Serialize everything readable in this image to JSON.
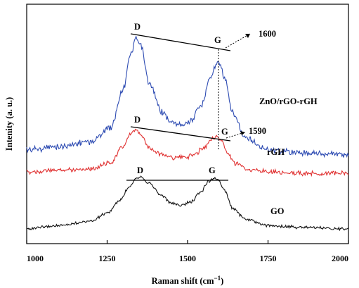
{
  "chart_data": {
    "type": "line",
    "xlabel": "Raman shift (cm",
    "xlabel_sup": "−1",
    "xlabel_close": ")",
    "ylabel": "Intenity (a. u.)",
    "xlim": [
      1000,
      2000
    ],
    "x_ticks": [
      "1000",
      "1250",
      "1500",
      "1750",
      "2000"
    ],
    "y_ticks": "none",
    "legend": "none (series labeled inline at right)",
    "grid": false,
    "series": [
      {
        "name": "ZnO/rGO-rGH",
        "color": "#2d4bb2",
        "points": [
          [
            1000,
            0.1
          ],
          [
            1100,
            0.12
          ],
          [
            1200,
            0.15
          ],
          [
            1260,
            0.24
          ],
          [
            1300,
            0.48
          ],
          [
            1320,
            0.68
          ],
          [
            1340,
            0.8
          ],
          [
            1355,
            0.75
          ],
          [
            1380,
            0.52
          ],
          [
            1420,
            0.34
          ],
          [
            1450,
            0.27
          ],
          [
            1480,
            0.26
          ],
          [
            1510,
            0.28
          ],
          [
            1540,
            0.37
          ],
          [
            1570,
            0.55
          ],
          [
            1590,
            0.64
          ],
          [
            1600,
            0.65
          ],
          [
            1615,
            0.55
          ],
          [
            1640,
            0.33
          ],
          [
            1680,
            0.17
          ],
          [
            1750,
            0.1
          ],
          [
            1850,
            0.08
          ],
          [
            2000,
            0.07
          ]
        ]
      },
      {
        "name": "rGH",
        "color": "#e03030",
        "points": [
          [
            1000,
            -0.04
          ],
          [
            1100,
            -0.03
          ],
          [
            1200,
            -0.02
          ],
          [
            1260,
            0.02
          ],
          [
            1300,
            0.12
          ],
          [
            1320,
            0.19
          ],
          [
            1340,
            0.22
          ],
          [
            1360,
            0.18
          ],
          [
            1380,
            0.11
          ],
          [
            1420,
            0.07
          ],
          [
            1460,
            0.05
          ],
          [
            1490,
            0.05
          ],
          [
            1520,
            0.07
          ],
          [
            1550,
            0.11
          ],
          [
            1575,
            0.17
          ],
          [
            1590,
            0.18
          ],
          [
            1605,
            0.16
          ],
          [
            1625,
            0.07
          ],
          [
            1650,
            0.01
          ],
          [
            1700,
            -0.03
          ],
          [
            1850,
            -0.05
          ],
          [
            2000,
            -0.05
          ]
        ]
      },
      {
        "name": "GO",
        "color": "#111111",
        "points": [
          [
            1000,
            -0.4
          ],
          [
            1100,
            -0.38
          ],
          [
            1200,
            -0.35
          ],
          [
            1250,
            -0.3
          ],
          [
            1290,
            -0.22
          ],
          [
            1320,
            -0.13
          ],
          [
            1340,
            -0.08
          ],
          [
            1355,
            -0.07
          ],
          [
            1380,
            -0.11
          ],
          [
            1420,
            -0.19
          ],
          [
            1450,
            -0.24
          ],
          [
            1480,
            -0.25
          ],
          [
            1510,
            -0.23
          ],
          [
            1540,
            -0.17
          ],
          [
            1565,
            -0.1
          ],
          [
            1580,
            -0.08
          ],
          [
            1595,
            -0.09
          ],
          [
            1615,
            -0.16
          ],
          [
            1640,
            -0.27
          ],
          [
            1680,
            -0.34
          ],
          [
            1750,
            -0.38
          ],
          [
            1850,
            -0.39
          ],
          [
            2000,
            -0.4
          ]
        ]
      }
    ],
    "annotations": {
      "peak_D": "D",
      "peak_G": "G",
      "zno_shift": "1600",
      "rgh_shift": "1590"
    }
  }
}
